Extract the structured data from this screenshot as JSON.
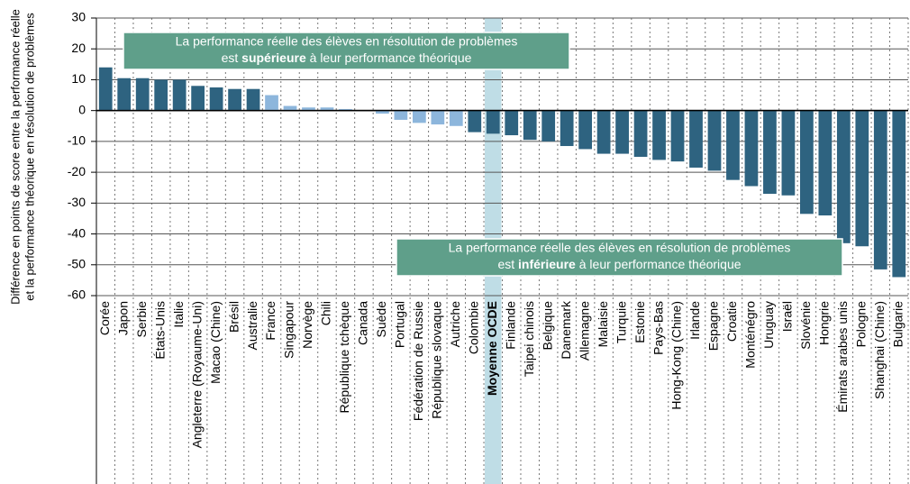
{
  "chart_data": {
    "type": "bar",
    "y_label": [
      "Différence en points de score entre la performance réelle",
      "et la performance théorique en résolution de problèmes"
    ],
    "categories": [
      "Corée",
      "Japon",
      "Serbie",
      "États-Unis",
      "Italie",
      "Angleterre (Royaume-Uni)",
      "Macao (Chine)",
      "Brésil",
      "Australie",
      "France",
      "Singapour",
      "Norvège",
      "Chili",
      "République tchèque",
      "Canada",
      "Suède",
      "Portugal",
      "Fédération de Russie",
      "République slovaque",
      "Autriche",
      "Colombie",
      "Moyenne OCDE",
      "Finlande",
      "Taipei chinois",
      "Belgique",
      "Danemark",
      "Allemagne",
      "Malaisie",
      "Turquie",
      "Estonie",
      "Pays-Bas",
      "Hong-Kong (Chine)",
      "Irlande",
      "Espagne",
      "Croatie",
      "Monténégro",
      "Uruguay",
      "Israël",
      "Slovénie",
      "Hongrie",
      "Émirats arabes unis",
      "Pologne",
      "Shanghai (Chine)",
      "Bulgarie"
    ],
    "values": [
      14,
      10.5,
      10.5,
      10,
      10,
      8,
      7.5,
      7,
      7,
      5,
      1.5,
      1,
      1,
      0.5,
      0,
      -1,
      -3,
      -4,
      -4.5,
      -5,
      -7,
      -7.5,
      -8,
      -9.5,
      -10,
      -11.5,
      -12.5,
      -14,
      -14,
      -15,
      -16,
      -16.5,
      -18.5,
      -19.5,
      -22.5,
      -24.5,
      -27,
      -27.5,
      -33.5,
      -34,
      -43,
      -44,
      -51.5,
      -54
    ],
    "colors": [
      "#2e6380",
      "#2e6380",
      "#2e6380",
      "#2e6380",
      "#2e6380",
      "#2e6380",
      "#2e6380",
      "#2e6380",
      "#2e6380",
      "#8db6dc",
      "#8db6dc",
      "#8db6dc",
      "#8db6dc",
      "#8db6dc",
      "#8db6dc",
      "#8db6dc",
      "#8db6dc",
      "#8db6dc",
      "#8db6dc",
      "#8db6dc",
      "#2e6380",
      "#2e6380",
      "#2e6380",
      "#2e6380",
      "#2e6380",
      "#2e6380",
      "#2e6380",
      "#2e6380",
      "#2e6380",
      "#2e6380",
      "#2e6380",
      "#2e6380",
      "#2e6380",
      "#2e6380",
      "#2e6380",
      "#2e6380",
      "#2e6380",
      "#2e6380",
      "#2e6380",
      "#2e6380",
      "#2e6380",
      "#2e6380",
      "#2e6380",
      "#2e6380"
    ],
    "label_colors": [
      "#000",
      "#000",
      "#1f8a7a",
      "#000",
      "#000",
      "#000",
      "#1f8a7a",
      "#1f8a7a",
      "#000",
      "#000",
      "#1f8a7a",
      "#000",
      "#000",
      "#000",
      "#000",
      "#000",
      "#000",
      "#1f8a7a",
      "#000",
      "#000",
      "#1f8a7a",
      "#000",
      "#000",
      "#1f8a7a",
      "#000",
      "#000",
      "#000",
      "#1f8a7a",
      "#000",
      "#000",
      "#000",
      "#1f8a7a",
      "#000",
      "#000",
      "#1f8a7a",
      "#1f8a7a",
      "#1f8a7a",
      "#000",
      "#000",
      "#000",
      "#1f8a7a",
      "#000",
      "#1f8a7a",
      "#1f8a7a"
    ],
    "highlight_index": 21,
    "ylim": [
      -60,
      30
    ],
    "yticks": [
      -60,
      -50,
      -40,
      -30,
      -20,
      -10,
      0,
      10,
      20,
      30
    ],
    "grid": true,
    "annotations": [
      {
        "line1": "La performance réelle des élèves en résolution de problèmes",
        "pre": "est ",
        "bold": "supérieure",
        "post": " à leur performance théorique"
      },
      {
        "line1": "La performance réelle des élèves en résolution de problèmes",
        "pre": "est ",
        "bold": "inférieure",
        "post": " à leur performance théorique"
      }
    ]
  }
}
